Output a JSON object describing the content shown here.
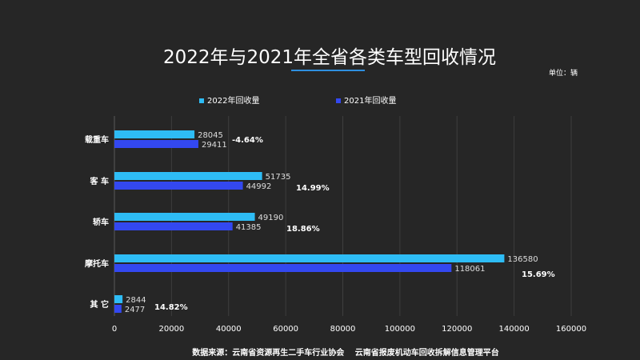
{
  "chart_data": {
    "type": "bar",
    "orientation": "horizontal",
    "title": "2022年与2021年全省各类车型回收情况",
    "unit_label": "单位：辆",
    "categories": [
      "载重车",
      "客 车",
      "轿车",
      "摩托车",
      "其 它"
    ],
    "series": [
      {
        "name": "2022年回收量",
        "values": [
          28045,
          51735,
          49190,
          136580,
          2844
        ]
      },
      {
        "name": "2021年回收量",
        "values": [
          29411,
          44992,
          41385,
          118061,
          2477
        ]
      }
    ],
    "value_labels_2022": [
      "28045",
      "51735",
      "49190",
      "136580",
      "2844"
    ],
    "value_labels_2021": [
      "29411",
      "44992",
      "41385",
      "118061",
      "2477"
    ],
    "growth_labels": [
      "-4.64%",
      "14.99%",
      "18.86%",
      "15.69%",
      "14.82%"
    ],
    "xlim": [
      0,
      160000
    ],
    "x_ticks": [
      0,
      20000,
      40000,
      60000,
      80000,
      100000,
      120000,
      140000,
      160000
    ],
    "x_tick_labels": [
      "0",
      "20000",
      "40000",
      "60000",
      "80000",
      "100000",
      "120000",
      "140000",
      "160000"
    ],
    "grid": true,
    "legend_position": "top",
    "source": "数据来源：云南省资源再生二手车行业协会　 云南省报废机动车回收拆解信息管理平台",
    "colors": {
      "s2022": "#2ebcf5",
      "s2021": "#3348f0",
      "background": "#262626",
      "grid": "#3e3e3e",
      "title_underline": "#2e8fe0"
    }
  }
}
